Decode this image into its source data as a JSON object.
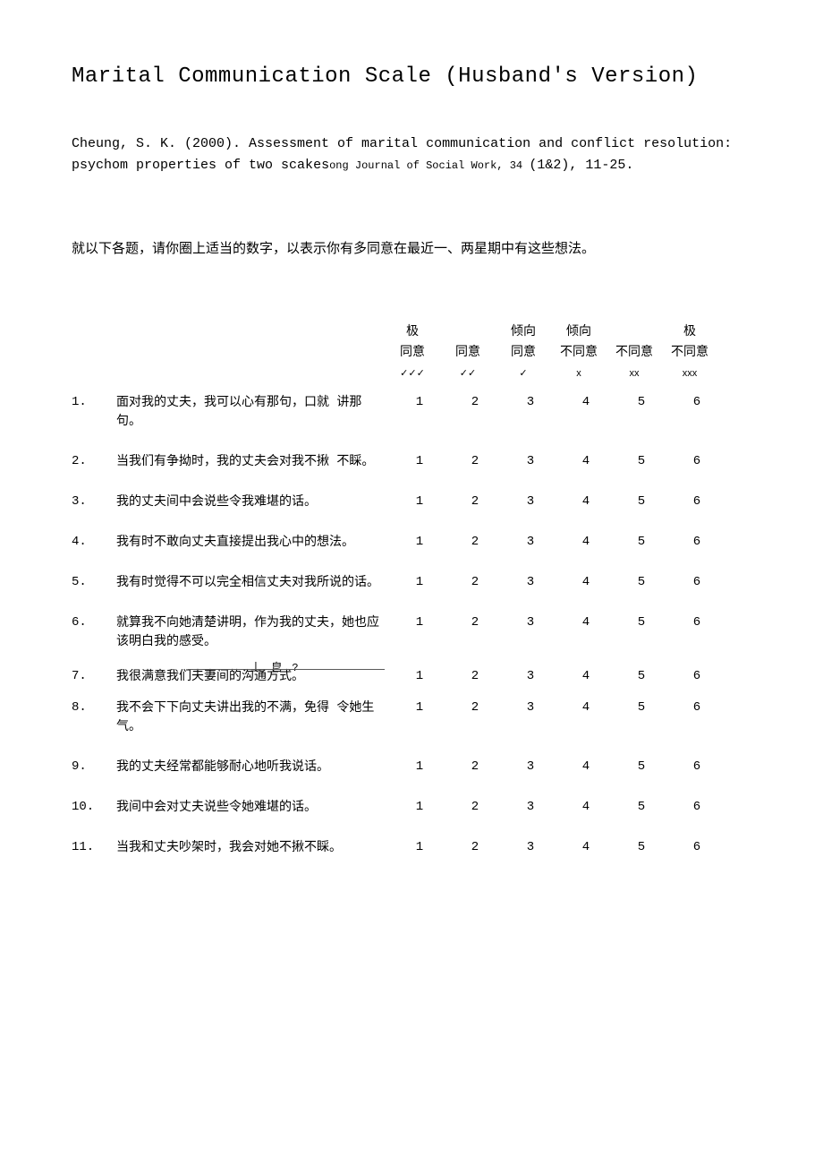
{
  "title": "Marital Communication Scale (Husband's Version)",
  "citation_part1": "Cheung, S. K. (2000). Assessment of marital communication and conflict resolution: psychom properties of two sca",
  "citation_part2": "k",
  "citation_part3": "es",
  "citation_small": "ong Journal of Social Work, 34 ",
  "citation_tail": "(1&2), 11-25.",
  "instruction": "就以下各题，请你圈上适当的数字，以表示你有多同意在最近一、两星期中有这些想法。",
  "headers": {
    "line1": [
      "极",
      "",
      "倾向",
      "倾向",
      "",
      "极"
    ],
    "line2": [
      "同意",
      "同意",
      "同意",
      "不同意",
      "不同意",
      "不同意"
    ],
    "symbols": [
      "✓✓✓",
      "✓✓",
      "✓",
      "x",
      "xx",
      "xxx"
    ]
  },
  "options": [
    "1",
    "2",
    "3",
    "4",
    "5",
    "6"
  ],
  "strange": "丄 皀 ?",
  "items": [
    {
      "n": "1.",
      "text": "面对我的丈夫，我可以心有那句，口就 讲那句。"
    },
    {
      "n": "2.",
      "text": "当我们有争拗时，我的丈夫会对我不揪 不睬。"
    },
    {
      "n": "3.",
      "text": "我的丈夫间中会说些令我难堪的话。"
    },
    {
      "n": "4.",
      "text": "我有时不敢向丈夫直接提出我心中的想法。"
    },
    {
      "n": "5.",
      "text": "我有时觉得不可以完全相信丈夫对我所说的话。"
    },
    {
      "n": "6.",
      "text": "就算我不向她清楚讲明，作为我的丈夫，她也应该明白我的感受。"
    },
    {
      "n": "7.",
      "text": "我很满意我们夫妻间的沟通方式。"
    },
    {
      "n": "8.",
      "text": "我不会下下向丈夫讲出我的不满，免得 令她生气。"
    },
    {
      "n": "9.",
      "text": "我的丈夫经常都能够耐心地听我说话。"
    },
    {
      "n": "10.",
      "text": "我间中会对丈夫说些令她难堪的话。"
    },
    {
      "n": "11.",
      "text": "当我和丈夫吵架时，我会对她不揪不睬。"
    }
  ]
}
